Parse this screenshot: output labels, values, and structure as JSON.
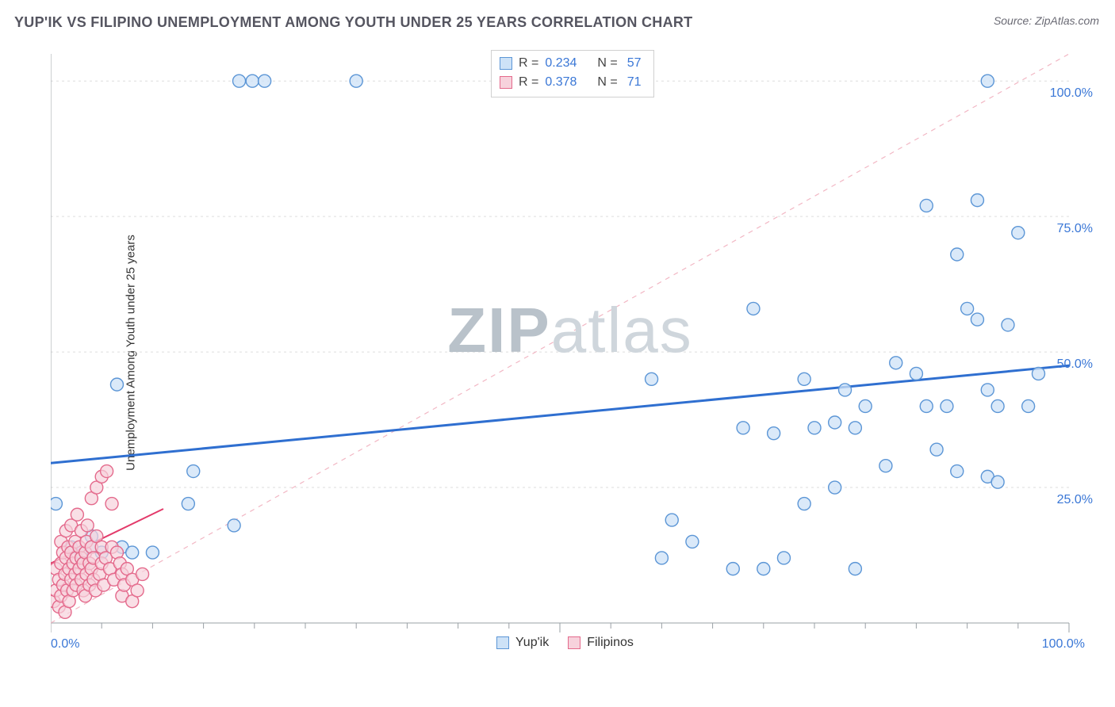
{
  "title": "YUP'IK VS FILIPINO UNEMPLOYMENT AMONG YOUTH UNDER 25 YEARS CORRELATION CHART",
  "source": "Source: ZipAtlas.com",
  "watermark": {
    "prefix": "ZIP",
    "suffix": "atlas"
  },
  "ylabel": "Unemployment Among Youth under 25 years",
  "chart": {
    "type": "scatter",
    "background_color": "#ffffff",
    "grid_color": "#dedede",
    "axis_color": "#9aa0a6",
    "xlim": [
      0,
      100
    ],
    "ylim": [
      0,
      105
    ],
    "x_ticks_major": [
      0,
      50,
      100
    ],
    "x_ticks_minor_step": 5,
    "y_gridlines": [
      25,
      50,
      75,
      100
    ],
    "y_tick_labels": [
      "25.0%",
      "50.0%",
      "75.0%",
      "100.0%"
    ],
    "x_tick_label_left": "0.0%",
    "x_tick_label_right": "100.0%",
    "marker_radius": 8,
    "marker_stroke_width": 1.4,
    "series": [
      {
        "name": "Yup'ik",
        "legend_label": "Yup'ik",
        "fill": "#cde2f7",
        "stroke": "#5c96d6",
        "fill_opacity": 0.75,
        "points": [
          [
            18.5,
            100
          ],
          [
            19.8,
            100
          ],
          [
            21,
            100
          ],
          [
            30,
            100
          ],
          [
            92,
            100
          ],
          [
            6.5,
            44
          ],
          [
            14,
            28
          ],
          [
            13.5,
            22
          ],
          [
            18,
            18
          ],
          [
            0.5,
            22
          ],
          [
            4,
            16
          ],
          [
            2,
            14
          ],
          [
            4,
            14
          ],
          [
            7,
            14
          ],
          [
            3,
            13
          ],
          [
            5,
            13
          ],
          [
            8,
            13
          ],
          [
            10,
            13
          ],
          [
            59,
            45
          ],
          [
            60,
            12
          ],
          [
            61,
            19
          ],
          [
            63,
            15
          ],
          [
            67,
            10
          ],
          [
            68,
            36
          ],
          [
            69,
            58
          ],
          [
            70,
            10
          ],
          [
            71,
            35
          ],
          [
            72,
            12
          ],
          [
            74,
            45
          ],
          [
            74,
            22
          ],
          [
            75,
            36
          ],
          [
            77,
            37
          ],
          [
            77,
            25
          ],
          [
            78,
            43
          ],
          [
            79,
            36
          ],
          [
            79,
            10
          ],
          [
            80,
            40
          ],
          [
            82,
            29
          ],
          [
            83,
            48
          ],
          [
            85,
            46
          ],
          [
            86,
            40
          ],
          [
            86,
            77
          ],
          [
            87,
            32
          ],
          [
            88,
            40
          ],
          [
            89,
            68
          ],
          [
            89,
            28
          ],
          [
            90,
            58
          ],
          [
            91,
            78
          ],
          [
            91,
            56
          ],
          [
            92,
            43
          ],
          [
            92,
            27
          ],
          [
            93,
            40
          ],
          [
            93,
            26
          ],
          [
            94,
            55
          ],
          [
            95,
            72
          ],
          [
            96,
            40
          ],
          [
            97,
            46
          ]
        ],
        "regression": {
          "x1": 0,
          "y1": 29.5,
          "x2": 100,
          "y2": 47.5,
          "color": "#2f6fd0",
          "width": 3,
          "dash": "none"
        },
        "diag": {
          "x1": 0,
          "y1": 0,
          "x2": 100,
          "y2": 105,
          "color": "#f2b7c4",
          "width": 1.2,
          "dash": "6,6"
        },
        "R": "0.234",
        "N": "57"
      },
      {
        "name": "Filipinos",
        "legend_label": "Filipinos",
        "fill": "#f7d2dc",
        "stroke": "#e46a8c",
        "fill_opacity": 0.7,
        "points": [
          [
            0.3,
            4
          ],
          [
            0.5,
            6
          ],
          [
            0.5,
            10
          ],
          [
            0.8,
            3
          ],
          [
            0.8,
            8
          ],
          [
            1,
            5
          ],
          [
            1,
            11
          ],
          [
            1,
            15
          ],
          [
            1.2,
            7
          ],
          [
            1.2,
            13
          ],
          [
            1.4,
            2
          ],
          [
            1.4,
            9
          ],
          [
            1.5,
            12
          ],
          [
            1.5,
            17
          ],
          [
            1.6,
            6
          ],
          [
            1.7,
            14
          ],
          [
            1.8,
            4
          ],
          [
            1.8,
            10
          ],
          [
            2,
            8
          ],
          [
            2,
            13
          ],
          [
            2,
            18
          ],
          [
            2.2,
            6
          ],
          [
            2.2,
            11
          ],
          [
            2.4,
            9
          ],
          [
            2.4,
            15
          ],
          [
            2.5,
            7
          ],
          [
            2.5,
            12
          ],
          [
            2.6,
            20
          ],
          [
            2.8,
            10
          ],
          [
            2.8,
            14
          ],
          [
            3,
            8
          ],
          [
            3,
            12
          ],
          [
            3,
            17
          ],
          [
            3.2,
            6
          ],
          [
            3.2,
            11
          ],
          [
            3.4,
            5
          ],
          [
            3.4,
            13
          ],
          [
            3.5,
            9
          ],
          [
            3.5,
            15
          ],
          [
            3.6,
            18
          ],
          [
            3.8,
            7
          ],
          [
            3.8,
            11
          ],
          [
            4,
            10
          ],
          [
            4,
            14
          ],
          [
            4,
            23
          ],
          [
            4.2,
            8
          ],
          [
            4.2,
            12
          ],
          [
            4.4,
            6
          ],
          [
            4.5,
            16
          ],
          [
            4.5,
            25
          ],
          [
            4.8,
            9
          ],
          [
            5,
            11
          ],
          [
            5,
            14
          ],
          [
            5,
            27
          ],
          [
            5.2,
            7
          ],
          [
            5.4,
            12
          ],
          [
            5.5,
            28
          ],
          [
            5.8,
            10
          ],
          [
            6,
            14
          ],
          [
            6,
            22
          ],
          [
            6.2,
            8
          ],
          [
            6.5,
            13
          ],
          [
            6.8,
            11
          ],
          [
            7,
            5
          ],
          [
            7,
            9
          ],
          [
            7.2,
            7
          ],
          [
            7.5,
            10
          ],
          [
            8,
            8
          ],
          [
            8,
            4
          ],
          [
            8.5,
            6
          ],
          [
            9,
            9
          ]
        ],
        "regression": {
          "x1": 0,
          "y1": 11,
          "x2": 11,
          "y2": 21,
          "color": "#e33a6a",
          "width": 2,
          "dash": "none"
        },
        "R": "0.378",
        "N": "71"
      }
    ]
  },
  "legend": {
    "items": [
      {
        "label": "Yup'ik",
        "fill": "#cde2f7",
        "stroke": "#5c96d6"
      },
      {
        "label": "Filipinos",
        "fill": "#f7d2dc",
        "stroke": "#e46a8c"
      }
    ]
  },
  "corr_box": {
    "rows": [
      {
        "swatch_fill": "#cde2f7",
        "swatch_stroke": "#5c96d6",
        "R_label": "R =",
        "R": "0.234",
        "N_label": "N =",
        "N": "57"
      },
      {
        "swatch_fill": "#f7d2dc",
        "swatch_stroke": "#e46a8c",
        "R_label": "R =",
        "R": "0.378",
        "N_label": "N =",
        "N": "71"
      }
    ]
  }
}
